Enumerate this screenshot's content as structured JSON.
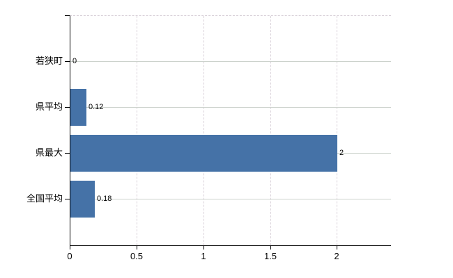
{
  "chart_data": {
    "type": "bar",
    "orientation": "horizontal",
    "title": "",
    "xlabel": "",
    "ylabel": "",
    "categories": [
      "若狭町",
      "県平均",
      "県最大",
      "全国平均"
    ],
    "values": [
      0,
      0.12,
      2,
      0.18
    ],
    "data_labels": [
      "0",
      "0.12",
      "2",
      "0.18"
    ],
    "xticks": [
      0,
      0.5,
      1,
      1.5,
      2
    ],
    "xtick_labels": [
      "0",
      "0.5",
      "1",
      "1.5",
      "2"
    ],
    "xlim": [
      0,
      2.4
    ],
    "grid": true,
    "legend": false,
    "bar_color": "#4572a7",
    "axis_color": "#000000",
    "h_grid_color": "#ccd2cc",
    "v_grid_color": "#d9d1d9",
    "background_color": "#ffffff"
  }
}
